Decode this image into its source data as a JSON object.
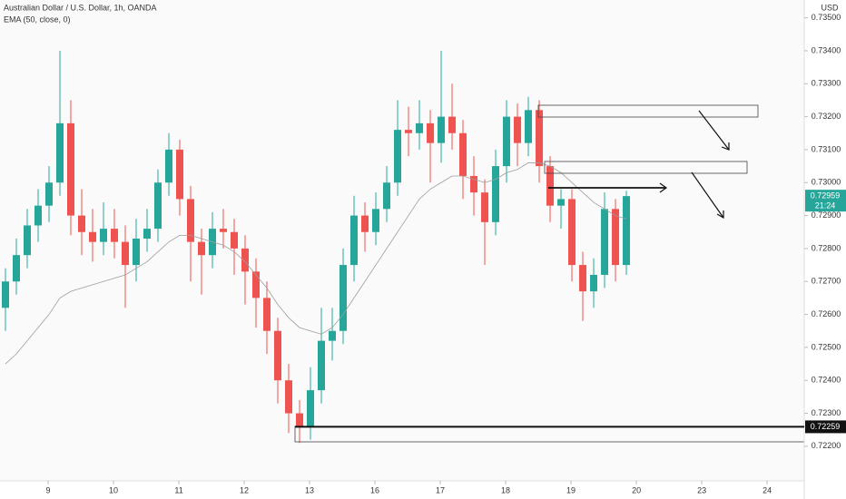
{
  "chart_data": {
    "type": "candlestick",
    "title": "Australian Dollar / U.S. Dollar, 1h, OANDA",
    "indicator": "EMA (50, close, 0)",
    "currency": "USD",
    "up_color": "#26a69a",
    "down_color": "#ef5350",
    "open": [
      0.7262,
      0.727,
      0.7278,
      0.7287,
      0.7293,
      0.73,
      0.7318,
      0.729,
      0.7285,
      0.7282,
      0.7286,
      0.7282,
      0.7275,
      0.7283,
      0.7286,
      0.73,
      0.731,
      0.7295,
      0.7282,
      0.7278,
      0.7286,
      0.7285,
      0.728,
      0.7273,
      0.7265,
      0.7255,
      0.724,
      0.723,
      0.7226,
      0.7237,
      0.7252,
      0.7255,
      0.7275,
      0.729,
      0.7285,
      0.7292,
      0.73,
      0.7316,
      0.7315,
      0.7318,
      0.7312,
      0.732,
      0.7315,
      0.7302,
      0.7297,
      0.7288,
      0.7305,
      0.732,
      0.7312,
      0.7322,
      0.7305,
      0.7293,
      0.7295,
      0.7275,
      0.7267,
      0.7272,
      0.7292,
      0.7275
    ],
    "high": [
      0.7274,
      0.7283,
      0.7292,
      0.7298,
      0.7305,
      0.734,
      0.7325,
      0.7298,
      0.7292,
      0.7294,
      0.7292,
      0.7287,
      0.7289,
      0.7292,
      0.7304,
      0.7315,
      0.7313,
      0.7299,
      0.7286,
      0.7291,
      0.7292,
      0.7289,
      0.7284,
      0.7277,
      0.727,
      0.7259,
      0.7245,
      0.7234,
      0.7244,
      0.7262,
      0.7262,
      0.728,
      0.7296,
      0.7294,
      0.7297,
      0.7305,
      0.7325,
      0.7323,
      0.7325,
      0.7322,
      0.734,
      0.733,
      0.7319,
      0.7308,
      0.7301,
      0.731,
      0.7325,
      0.7324,
      0.7326,
      0.7325,
      0.7308,
      0.7298,
      0.7298,
      0.7279,
      0.7277,
      0.7297,
      0.7295,
      0.72975
    ],
    "low": [
      0.7255,
      0.7266,
      0.7274,
      0.7282,
      0.7288,
      0.7296,
      0.7284,
      0.7278,
      0.7276,
      0.7278,
      0.7277,
      0.7262,
      0.727,
      0.7279,
      0.7282,
      0.7296,
      0.729,
      0.727,
      0.7266,
      0.7274,
      0.728,
      0.7272,
      0.7263,
      0.7256,
      0.7248,
      0.7233,
      0.7224,
      0.7221,
      0.7222,
      0.7233,
      0.7246,
      0.7251,
      0.727,
      0.7279,
      0.7281,
      0.7288,
      0.7296,
      0.7308,
      0.731,
      0.73,
      0.7306,
      0.731,
      0.7295,
      0.729,
      0.7275,
      0.7284,
      0.73,
      0.7305,
      0.7308,
      0.73,
      0.7288,
      0.7286,
      0.727,
      0.7258,
      0.7262,
      0.7268,
      0.727,
      0.7272
    ],
    "close": [
      0.727,
      0.7278,
      0.7287,
      0.7293,
      0.73,
      0.7318,
      0.729,
      0.7285,
      0.7282,
      0.7286,
      0.7282,
      0.7275,
      0.7283,
      0.7286,
      0.73,
      0.731,
      0.7295,
      0.7282,
      0.7278,
      0.7286,
      0.7285,
      0.728,
      0.7273,
      0.7265,
      0.7255,
      0.724,
      0.723,
      0.7226,
      0.7237,
      0.7252,
      0.7255,
      0.7275,
      0.729,
      0.7285,
      0.7292,
      0.73,
      0.7316,
      0.7315,
      0.7318,
      0.7312,
      0.732,
      0.7315,
      0.7302,
      0.7297,
      0.7288,
      0.7305,
      0.732,
      0.7312,
      0.7322,
      0.7305,
      0.7293,
      0.7295,
      0.7275,
      0.7267,
      0.7272,
      0.7292,
      0.7275,
      0.72959
    ],
    "ema": {
      "color": "#9e9e9e",
      "values": [
        0.7245,
        0.7248,
        0.7252,
        0.7256,
        0.726,
        0.7265,
        0.7267,
        0.7268,
        0.7269,
        0.727,
        0.7271,
        0.7272,
        0.7274,
        0.7276,
        0.7279,
        0.7282,
        0.7284,
        0.7284,
        0.7283,
        0.7282,
        0.7281,
        0.7279,
        0.7276,
        0.7272,
        0.7268,
        0.7263,
        0.7259,
        0.7256,
        0.7255,
        0.7254,
        0.7256,
        0.726,
        0.7265,
        0.727,
        0.7275,
        0.728,
        0.7285,
        0.729,
        0.7295,
        0.7298,
        0.73,
        0.7302,
        0.7302,
        0.7301,
        0.73,
        0.7301,
        0.7303,
        0.7304,
        0.7306,
        0.7306,
        0.7305,
        0.7303,
        0.73,
        0.7297,
        0.7294,
        0.7292,
        0.729,
        0.7289
      ]
    },
    "xlim": [
      -0.5,
      73.33
    ],
    "xticks": [
      {
        "value": 3.92,
        "label": "9"
      },
      {
        "value": 9.92,
        "label": "10"
      },
      {
        "value": 15.92,
        "label": "11"
      },
      {
        "value": 21.92,
        "label": "12"
      },
      {
        "value": 27.92,
        "label": "13"
      },
      {
        "value": 33.92,
        "label": "16"
      },
      {
        "value": 39.92,
        "label": "17"
      },
      {
        "value": 45.92,
        "label": "18"
      },
      {
        "value": 51.92,
        "label": "19"
      },
      {
        "value": 57.92,
        "label": "20"
      },
      {
        "value": 63.92,
        "label": "23"
      },
      {
        "value": 69.92,
        "label": "24"
      }
    ],
    "ylim": [
      0.72095,
      0.73554
    ],
    "yticks": [
      {
        "value": 0.722,
        "label": "0.72200"
      },
      {
        "value": 0.723,
        "label": "0.72300"
      },
      {
        "value": 0.724,
        "label": "0.72400"
      },
      {
        "value": 0.725,
        "label": "0.72500"
      },
      {
        "value": 0.726,
        "label": "0.72600"
      },
      {
        "value": 0.727,
        "label": "0.72700"
      },
      {
        "value": 0.728,
        "label": "0.72800"
      },
      {
        "value": 0.729,
        "label": "0.72900"
      },
      {
        "value": 0.73,
        "label": "0.73000"
      },
      {
        "value": 0.731,
        "label": "0.73100"
      },
      {
        "value": 0.732,
        "label": "0.73200"
      },
      {
        "value": 0.733,
        "label": "0.73300"
      },
      {
        "value": 0.734,
        "label": "0.73400"
      },
      {
        "value": 0.735,
        "label": "0.73500"
      }
    ],
    "last_price": 0.72959,
    "countdown": "21:24",
    "level": 0.72259
  }
}
